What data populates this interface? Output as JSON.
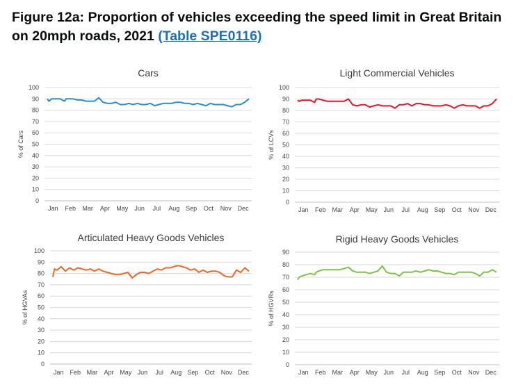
{
  "heading": {
    "title": "Figure 12a: Proportion of vehicles exceeding the speed limit in Great Britain on 20mph roads, 2021",
    "link_text": "(Table SPE0116)"
  },
  "chart_data": [
    {
      "type": "line",
      "title": "Cars",
      "ylabel": "% of Cars",
      "ylim": [
        0,
        100
      ],
      "yticks": [
        0,
        10,
        20,
        30,
        40,
        50,
        60,
        70,
        80,
        90,
        100
      ],
      "categories": [
        "Jan",
        "Feb",
        "Mar",
        "Apr",
        "May",
        "Jun",
        "Jul",
        "Aug",
        "Sep",
        "Oct",
        "Nov",
        "Dec"
      ],
      "grid": true,
      "color": "#2a8ccd",
      "x": [
        0.0,
        0.1,
        0.25,
        0.5,
        0.75,
        1.0,
        1.1,
        1.25,
        1.5,
        1.75,
        2.0,
        2.25,
        2.5,
        2.75,
        3.0,
        3.25,
        3.5,
        3.75,
        4.0,
        4.25,
        4.5,
        4.75,
        5.0,
        5.25,
        5.5,
        5.75,
        6.0,
        6.25,
        6.5,
        6.75,
        7.0,
        7.25,
        7.5,
        7.75,
        8.0,
        8.25,
        8.5,
        8.75,
        9.0,
        9.25,
        9.5,
        9.75,
        10.0,
        10.25,
        10.5,
        10.75,
        11.0,
        11.25,
        11.5,
        11.75
      ],
      "values": [
        90,
        88,
        90,
        90,
        90,
        88,
        90,
        90,
        90,
        89,
        89,
        88,
        88,
        88,
        91,
        87,
        86,
        86,
        87,
        85,
        85,
        86,
        85,
        86,
        85,
        85,
        86,
        84,
        85,
        86,
        86,
        86,
        87,
        87,
        86,
        86,
        85,
        86,
        85,
        84,
        86,
        85,
        85,
        85,
        84,
        83,
        85,
        85,
        87,
        90
      ]
    },
    {
      "type": "line",
      "title": "Light Commercial Vehicles",
      "ylabel": "% of LCVs",
      "ylim": [
        0,
        100
      ],
      "yticks": [
        0,
        10,
        20,
        30,
        40,
        50,
        60,
        70,
        80,
        90,
        100
      ],
      "categories": [
        "Jan",
        "Feb",
        "Mar",
        "Apr",
        "May",
        "Jun",
        "Jul",
        "Aug",
        "Sep",
        "Oct",
        "Nov",
        "Dec"
      ],
      "grid": true,
      "color": "#e4142b",
      "x": [
        0.0,
        0.1,
        0.25,
        0.5,
        0.75,
        1.0,
        1.1,
        1.25,
        1.5,
        1.75,
        2.0,
        2.25,
        2.5,
        2.75,
        3.0,
        3.25,
        3.5,
        3.75,
        4.0,
        4.25,
        4.5,
        4.75,
        5.0,
        5.25,
        5.5,
        5.75,
        6.0,
        6.25,
        6.5,
        6.75,
        7.0,
        7.25,
        7.5,
        7.75,
        8.0,
        8.25,
        8.5,
        8.75,
        9.0,
        9.25,
        9.5,
        9.75,
        10.0,
        10.25,
        10.5,
        10.75,
        11.0,
        11.25,
        11.5,
        11.75
      ],
      "values": [
        89,
        88,
        89,
        89,
        89,
        87,
        90,
        90,
        89,
        88,
        88,
        88,
        88,
        88,
        90,
        85,
        84,
        85,
        85,
        83,
        84,
        85,
        84,
        84,
        84,
        82,
        85,
        85,
        86,
        84,
        86,
        86,
        85,
        85,
        84,
        84,
        84,
        85,
        84,
        82,
        84,
        85,
        84,
        84,
        84,
        82,
        84,
        84,
        86,
        90
      ]
    },
    {
      "type": "line",
      "title": "Articulated Heavy Goods Vehicles",
      "ylabel": "% of HGVAs",
      "ylim": [
        0,
        100
      ],
      "yticks": [
        0,
        10,
        20,
        30,
        40,
        50,
        60,
        70,
        80,
        90,
        100
      ],
      "categories": [
        "Jan",
        "Feb",
        "Mar",
        "Apr",
        "May",
        "Jun",
        "Jul",
        "Aug",
        "Sep",
        "Oct",
        "Nov",
        "Dec"
      ],
      "grid": true,
      "color": "#f26522",
      "x": [
        0.0,
        0.1,
        0.25,
        0.5,
        0.75,
        1.0,
        1.1,
        1.25,
        1.5,
        1.75,
        2.0,
        2.25,
        2.5,
        2.75,
        3.0,
        3.25,
        3.5,
        3.75,
        4.0,
        4.25,
        4.5,
        4.75,
        5.0,
        5.25,
        5.5,
        5.75,
        6.0,
        6.25,
        6.5,
        6.75,
        7.0,
        7.25,
        7.5,
        7.75,
        8.0,
        8.25,
        8.5,
        8.75,
        9.0,
        9.25,
        9.5,
        9.75,
        10.0,
        10.25,
        10.5,
        10.75,
        11.0,
        11.25,
        11.5,
        11.75
      ],
      "values": [
        77,
        84,
        83,
        86,
        82,
        85,
        84,
        83,
        85,
        84,
        83,
        84,
        82,
        84,
        82,
        81,
        80,
        79,
        79,
        80,
        81,
        76,
        79,
        81,
        81,
        80,
        82,
        84,
        83,
        85,
        85,
        86,
        87,
        86,
        85,
        83,
        84,
        81,
        83,
        81,
        82,
        82,
        81,
        78,
        77,
        77,
        83,
        81,
        85,
        82
      ]
    },
    {
      "type": "line",
      "title": "Rigid Heavy Goods Vehicles",
      "ylabel": "% of HGVRs",
      "ylim": [
        0,
        90
      ],
      "yticks": [
        0,
        10,
        20,
        30,
        40,
        50,
        60,
        70,
        80,
        90
      ],
      "categories": [
        "Jan",
        "Feb",
        "Mar",
        "Apr",
        "May",
        "Jun",
        "Jul",
        "Aug",
        "Sep",
        "Oct",
        "Nov",
        "Dec"
      ],
      "grid": true,
      "color": "#7dc242",
      "x": [
        0.0,
        0.1,
        0.25,
        0.5,
        0.75,
        1.0,
        1.1,
        1.25,
        1.5,
        1.75,
        2.0,
        2.25,
        2.5,
        2.75,
        3.0,
        3.25,
        3.5,
        3.75,
        4.0,
        4.25,
        4.5,
        4.75,
        5.0,
        5.25,
        5.5,
        5.75,
        6.0,
        6.25,
        6.5,
        6.75,
        7.0,
        7.25,
        7.5,
        7.75,
        8.0,
        8.25,
        8.5,
        8.75,
        9.0,
        9.25,
        9.5,
        9.75,
        10.0,
        10.25,
        10.5,
        10.75,
        11.0,
        11.25,
        11.5,
        11.75
      ],
      "values": [
        68,
        70,
        71,
        72,
        73,
        72,
        74,
        75,
        76,
        76,
        76,
        76,
        76,
        77,
        78,
        75,
        74,
        74,
        74,
        73,
        74,
        75,
        79,
        74,
        73,
        73,
        71,
        74,
        74,
        74,
        75,
        74,
        75,
        76,
        75,
        75,
        74,
        73,
        73,
        72,
        74,
        74,
        74,
        74,
        73,
        71,
        74,
        74,
        76,
        74
      ]
    }
  ]
}
